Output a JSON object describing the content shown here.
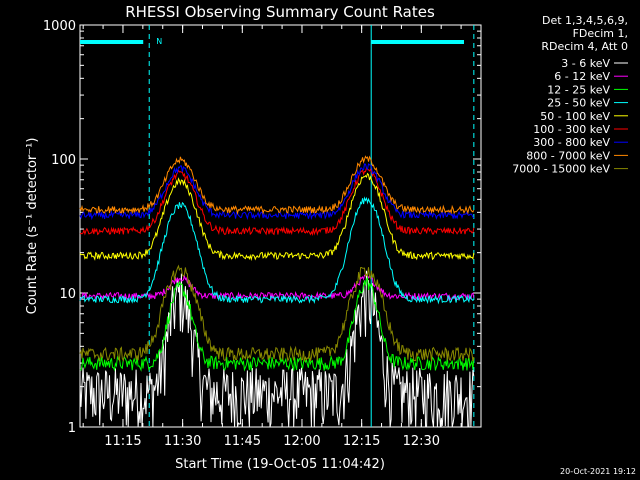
{
  "chart_data": {
    "type": "line",
    "title": "RHESSI Observing Summary Count Rates",
    "xlabel": "Start Time (19-Oct-05 11:04:42)",
    "ylabel": "Count Rate (s⁻¹ detector⁻¹)",
    "yscale": "log",
    "ylim": [
      1,
      1000
    ],
    "xlim_minutes": [
      11.07,
      12.75
    ],
    "x_tick_labels": [
      "11:15",
      "11:30",
      "11:45",
      "12:00",
      "12:15",
      "12:30"
    ],
    "x_ticks_hours": [
      11.25,
      11.5,
      11.75,
      12.0,
      12.25,
      12.5
    ],
    "y_tick_labels": [
      "1",
      "10",
      "100",
      "1000"
    ],
    "y_ticks": [
      1,
      10,
      100,
      1000
    ],
    "legend_header": [
      "Det 1,3,4,5,6,9,",
      "FDecim 1,",
      "RDecim 4, Att 0"
    ],
    "night_markers_hours": [
      11.36,
      12.29,
      12.72
    ],
    "flag_label": "N",
    "series": [
      {
        "name": "3 - 6 keV",
        "color": "#ffffff",
        "peaks": [
          9.5,
          9.5
        ],
        "base": 1.8
      },
      {
        "name": "6 - 12 keV",
        "color": "#ff00ff",
        "peaks": [
          13,
          13
        ],
        "base": 9.5
      },
      {
        "name": "12 - 25 keV",
        "color": "#00ff00",
        "peaks": [
          11,
          12
        ],
        "base": 3.0
      },
      {
        "name": "25 - 50 keV",
        "color": "#00ffff",
        "peaks": [
          45,
          50
        ],
        "base": 9.0
      },
      {
        "name": "50 - 100 keV",
        "color": "#ffff00",
        "peaks": [
          68,
          75
        ],
        "base": 19
      },
      {
        "name": "100 - 300 keV",
        "color": "#ff0000",
        "peaks": [
          78,
          82
        ],
        "base": 29
      },
      {
        "name": "300 - 800 keV",
        "color": "#0000ff",
        "peaks": [
          85,
          88
        ],
        "base": 38
      },
      {
        "name": "800 - 7000 keV",
        "color": "#ff8800",
        "peaks": [
          98,
          100
        ],
        "base": 42
      },
      {
        "name": "7000 - 15000 keV",
        "color": "#888800",
        "peaks": [
          15,
          15
        ],
        "base": 3.5
      }
    ],
    "peak_times_hours": [
      11.49,
      12.27
    ],
    "grid": false,
    "legend_position": "right"
  },
  "timestamp": "20-Oct-2021 19:12"
}
